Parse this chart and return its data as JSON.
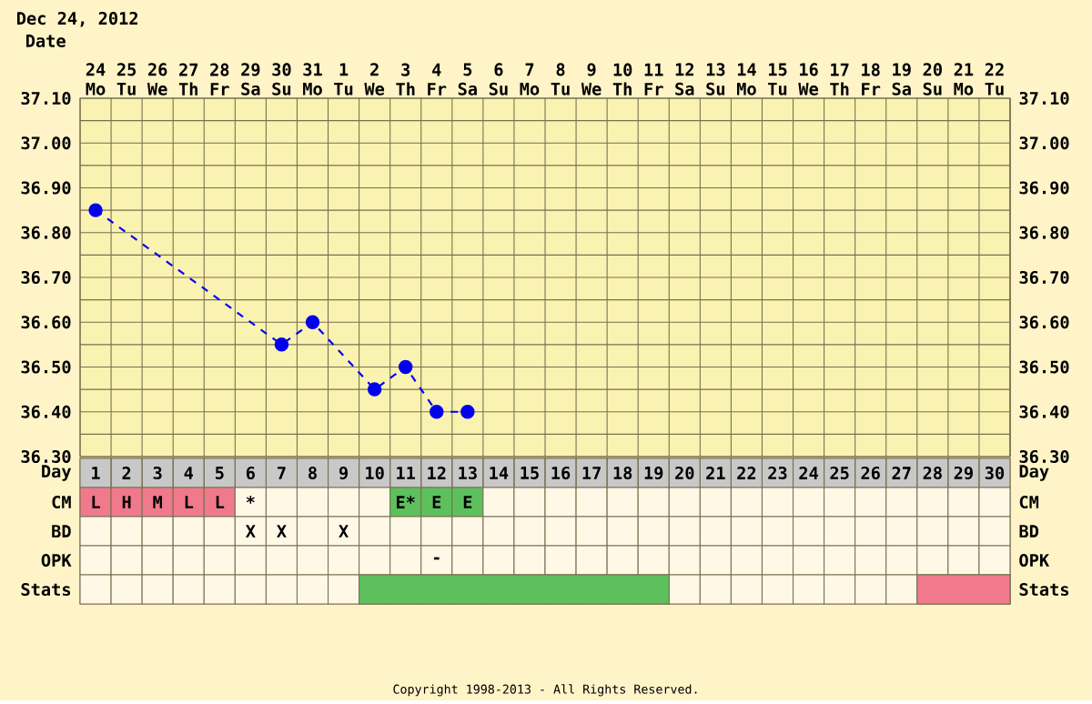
{
  "chart_data": [
    {
      "type": "line",
      "title": "Dec 24, 2012",
      "xlabel": "Date",
      "categories": [
        "24 Mo",
        "25 Tu",
        "26 We",
        "27 Th",
        "28 Fr",
        "29 Sa",
        "30 Su",
        "31 Mo",
        "1 Tu",
        "2 We",
        "3 Th",
        "4 Fr",
        "5 Sa",
        "6 Su",
        "7 Mo",
        "8 Tu",
        "9 We",
        "10 Th",
        "11 Fr",
        "12 Sa",
        "13 Su",
        "14 Mo",
        "15 Tu",
        "16 We",
        "17 Th",
        "18 Fr",
        "19 Sa",
        "20 Su",
        "21 Mo",
        "22 Tu"
      ],
      "series": [
        {
          "color": "#0000ee",
          "values": [
            36.85,
            null,
            null,
            null,
            null,
            null,
            36.55,
            36.6,
            null,
            36.45,
            36.5,
            36.4,
            36.4,
            null,
            null,
            null,
            null,
            null,
            null,
            null,
            null,
            null,
            null,
            null,
            null,
            null,
            null,
            null,
            null,
            null
          ]
        }
      ],
      "marker": "circle",
      "grid": true,
      "line_style": "dashed",
      "ylim": [
        36.3,
        37.1
      ],
      "yticks": [
        {
          "value": 36.3,
          "label": "36.30"
        },
        {
          "value": 36.4,
          "label": "36.40"
        },
        {
          "value": 36.5,
          "label": "36.50"
        },
        {
          "value": 36.6,
          "label": "36.60"
        },
        {
          "value": 36.7,
          "label": "36.70"
        },
        {
          "value": 36.8,
          "label": "36.80"
        },
        {
          "value": 36.9,
          "label": "36.90"
        },
        {
          "value": 37.0,
          "label": "37.00"
        },
        {
          "value": 37.1,
          "label": "37.10"
        }
      ],
      "y2lim": [
        36.3,
        37.1
      ],
      "y2ticks": [
        {
          "value": 36.3,
          "label": "36.30"
        },
        {
          "value": 36.4,
          "label": "36.40"
        },
        {
          "value": 36.5,
          "label": "36.50"
        },
        {
          "value": 36.6,
          "label": "36.60"
        },
        {
          "value": 36.7,
          "label": "36.70"
        },
        {
          "value": 36.8,
          "label": "36.80"
        },
        {
          "value": 36.9,
          "label": "36.90"
        },
        {
          "value": 37.0,
          "label": "37.00"
        },
        {
          "value": 37.1,
          "label": "37.10"
        }
      ],
      "annotations": [
        "Copyright 1998-2013 - All Rights Reserved."
      ]
    },
    {
      "type": "heatmap",
      "xlabel": "Day",
      "categories": [
        "1",
        "2",
        "3",
        "4",
        "5",
        "6",
        "7",
        "8",
        "9",
        "10",
        "11",
        "12",
        "13",
        "14",
        "15",
        "16",
        "17",
        "18",
        "19",
        "20",
        "21",
        "22",
        "23",
        "24",
        "25",
        "26",
        "27",
        "28",
        "29",
        "30"
      ],
      "y_categories": [
        "CM",
        "BD",
        "OPK",
        "Stats"
      ],
      "y2_categories": [
        "CM",
        "BD",
        "OPK",
        "Stats"
      ],
      "colors": [
        [
          "#f07a8c",
          "#f07a8c",
          "#f07a8c",
          "#f07a8c",
          "#f07a8c",
          "#fff8e6",
          "#fff8e6",
          "#fff8e6",
          "#fff8e6",
          "#fff8e6",
          "#5dc05d",
          "#5dc05d",
          "#5dc05d",
          "#fff8e6",
          "#fff8e6",
          "#fff8e6",
          "#fff8e6",
          "#fff8e6",
          "#fff8e6",
          "#fff8e6",
          "#fff8e6",
          "#fff8e6",
          "#fff8e6",
          "#fff8e6",
          "#fff8e6",
          "#fff8e6",
          "#fff8e6",
          "#fff8e6",
          "#fff8e6",
          "#fff8e6"
        ],
        [
          "#fff8e6",
          "#fff8e6",
          "#fff8e6",
          "#fff8e6",
          "#fff8e6",
          "#fff8e6",
          "#fff8e6",
          "#fff8e6",
          "#fff8e6",
          "#fff8e6",
          "#fff8e6",
          "#fff8e6",
          "#fff8e6",
          "#fff8e6",
          "#fff8e6",
          "#fff8e6",
          "#fff8e6",
          "#fff8e6",
          "#fff8e6",
          "#fff8e6",
          "#fff8e6",
          "#fff8e6",
          "#fff8e6",
          "#fff8e6",
          "#fff8e6",
          "#fff8e6",
          "#fff8e6",
          "#fff8e6",
          "#fff8e6",
          "#fff8e6"
        ],
        [
          "#fff8e6",
          "#fff8e6",
          "#fff8e6",
          "#fff8e6",
          "#fff8e6",
          "#fff8e6",
          "#fff8e6",
          "#fff8e6",
          "#fff8e6",
          "#fff8e6",
          "#fff8e6",
          "#fff8e6",
          "#fff8e6",
          "#fff8e6",
          "#fff8e6",
          "#fff8e6",
          "#fff8e6",
          "#fff8e6",
          "#fff8e6",
          "#fff8e6",
          "#fff8e6",
          "#fff8e6",
          "#fff8e6",
          "#fff8e6",
          "#fff8e6",
          "#fff8e6",
          "#fff8e6",
          "#fff8e6",
          "#fff8e6",
          "#fff8e6"
        ],
        [
          "#fff8e6",
          "#fff8e6",
          "#fff8e6",
          "#fff8e6",
          "#fff8e6",
          "#fff8e6",
          "#fff8e6",
          "#fff8e6",
          "#fff8e6",
          "#fff8e6",
          "#fff8e6",
          "#fff8e6",
          "#fff8e6",
          "#fff8e6",
          "#fff8e6",
          "#fff8e6",
          "#fff8e6",
          "#fff8e6",
          "#fff8e6",
          "#fff8e6",
          "#fff8e6",
          "#fff8e6",
          "#fff8e6",
          "#fff8e6",
          "#fff8e6",
          "#fff8e6",
          "#fff8e6",
          "#fff8e6",
          "#fff8e6",
          "#fff8e6"
        ]
      ],
      "bands": [
        {
          "axis": "x",
          "from": "10",
          "to": "19",
          "color": "#5dc05d"
        },
        {
          "axis": "x",
          "from": "28",
          "to": "30",
          "color": "#f07a8c"
        }
      ],
      "cells": [
        [
          null,
          null,
          null,
          null,
          null,
          null,
          null,
          null,
          null,
          null,
          null,
          null,
          null,
          null,
          null,
          null,
          null,
          null,
          null,
          null,
          null,
          null,
          null,
          null,
          null,
          null,
          null,
          null,
          null,
          null
        ],
        [
          null,
          null,
          null,
          null,
          null,
          null,
          null,
          null,
          null,
          null,
          null,
          null,
          null,
          null,
          null,
          null,
          null,
          null,
          null,
          null,
          null,
          null,
          null,
          null,
          null,
          null,
          null,
          null,
          null,
          null
        ],
        [
          null,
          null,
          null,
          null,
          null,
          null,
          null,
          null,
          null,
          null,
          null,
          null,
          null,
          null,
          null,
          null,
          null,
          null,
          null,
          null,
          null,
          null,
          null,
          null,
          null,
          null,
          null,
          null,
          null,
          null
        ],
        [
          null,
          null,
          null,
          null,
          null,
          null,
          null,
          null,
          null,
          null,
          null,
          null,
          null,
          null,
          null,
          null,
          null,
          null,
          null,
          null,
          null,
          null,
          null,
          null,
          null,
          null,
          null,
          null,
          null,
          null
        ]
      ],
      "cell_labels": [
        [
          "L",
          "H",
          "M",
          "L",
          "L",
          "*",
          null,
          null,
          null,
          null,
          "E*",
          "E",
          "E",
          null,
          null,
          null,
          null,
          null,
          null,
          null,
          null,
          null,
          null,
          null,
          null,
          null,
          null,
          null,
          null,
          null
        ],
        [
          null,
          null,
          null,
          null,
          null,
          "X",
          "X",
          null,
          "X",
          null,
          null,
          null,
          null,
          null,
          null,
          null,
          null,
          null,
          null,
          null,
          null,
          null,
          null,
          null,
          null,
          null,
          null,
          null,
          null,
          null
        ],
        [
          null,
          null,
          null,
          null,
          null,
          null,
          null,
          null,
          null,
          null,
          null,
          "-",
          null,
          null,
          null,
          null,
          null,
          null,
          null,
          null,
          null,
          null,
          null,
          null,
          null,
          null,
          null,
          null,
          null,
          null
        ],
        [
          null,
          null,
          null,
          null,
          null,
          null,
          null,
          null,
          null,
          null,
          null,
          null,
          null,
          null,
          null,
          null,
          null,
          null,
          null,
          null,
          null,
          null,
          null,
          null,
          null,
          null,
          null,
          null,
          null,
          null
        ]
      ]
    }
  ]
}
